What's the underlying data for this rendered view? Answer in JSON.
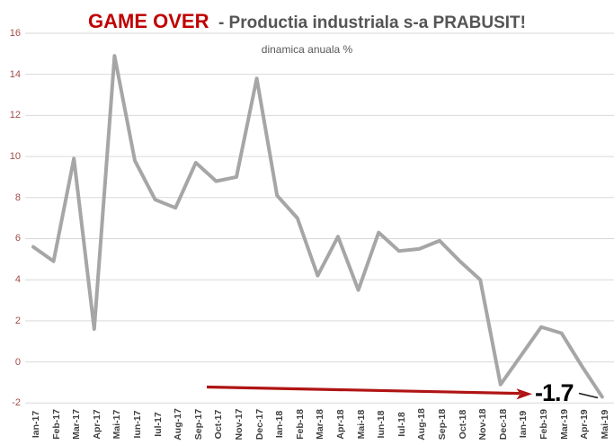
{
  "header": {
    "title_highlight": "GAME OVER",
    "title_rest": "- Productia industriala s-a PRABUSIT!",
    "subtitle": "dinamica anuala %"
  },
  "annotation": {
    "last_value_label": "-1.7"
  },
  "chart_data": {
    "type": "line",
    "title": "GAME OVER - Productia industriala s-a PRABUSIT!",
    "subtitle": "dinamica anuala %",
    "series_name": "dinamica anuala %",
    "categories": [
      "Ian-17",
      "Feb-17",
      "Mar-17",
      "Apr-17",
      "Mai-17",
      "Iun-17",
      "Iul-17",
      "Aug-17",
      "Sep-17",
      "Oct-17",
      "Nov-17",
      "Dec-17",
      "Ian-18",
      "Feb-18",
      "Mar-18",
      "Apr-18",
      "Mai-18",
      "Iun-18",
      "Iul-18",
      "Aug-18",
      "Sep-18",
      "Oct-18",
      "Nov-18",
      "Dec-18",
      "Ian-19",
      "Feb-19",
      "Mar-19",
      "Apr-19",
      "Mai-19"
    ],
    "values": [
      5.6,
      4.9,
      9.9,
      1.6,
      14.9,
      9.8,
      7.9,
      7.5,
      9.7,
      8.8,
      9.0,
      13.8,
      8.1,
      7.0,
      4.2,
      6.1,
      3.5,
      6.3,
      5.4,
      5.5,
      5.9,
      4.9,
      4.0,
      -1.1,
      0.3,
      1.7,
      1.4,
      -0.2,
      -1.7
    ],
    "y_ticks": [
      16,
      14,
      12,
      10,
      8,
      6,
      4,
      2,
      0,
      -2
    ],
    "ylim": [
      -2,
      16
    ],
    "xlabel": "",
    "ylabel": "",
    "grid": "horizontal",
    "legend": "none",
    "annotations": [
      {
        "type": "arrow",
        "label": "downtrend-arrow"
      },
      {
        "type": "data-label",
        "text": "-1.7",
        "target": "Mai-19"
      }
    ]
  },
  "colors": {
    "background": "#FFFFFF",
    "line": "#A6A6A6",
    "grid": "#D9D9D9",
    "title_highlight": "#C00000",
    "title_rest": "#555555",
    "subtitle": "#595959",
    "y_labels": "#A14D48",
    "x_labels": "#3F3F3F",
    "arrow": "#B01414",
    "annotation_text": "#000000",
    "leader_line": "#1A1A1A"
  }
}
